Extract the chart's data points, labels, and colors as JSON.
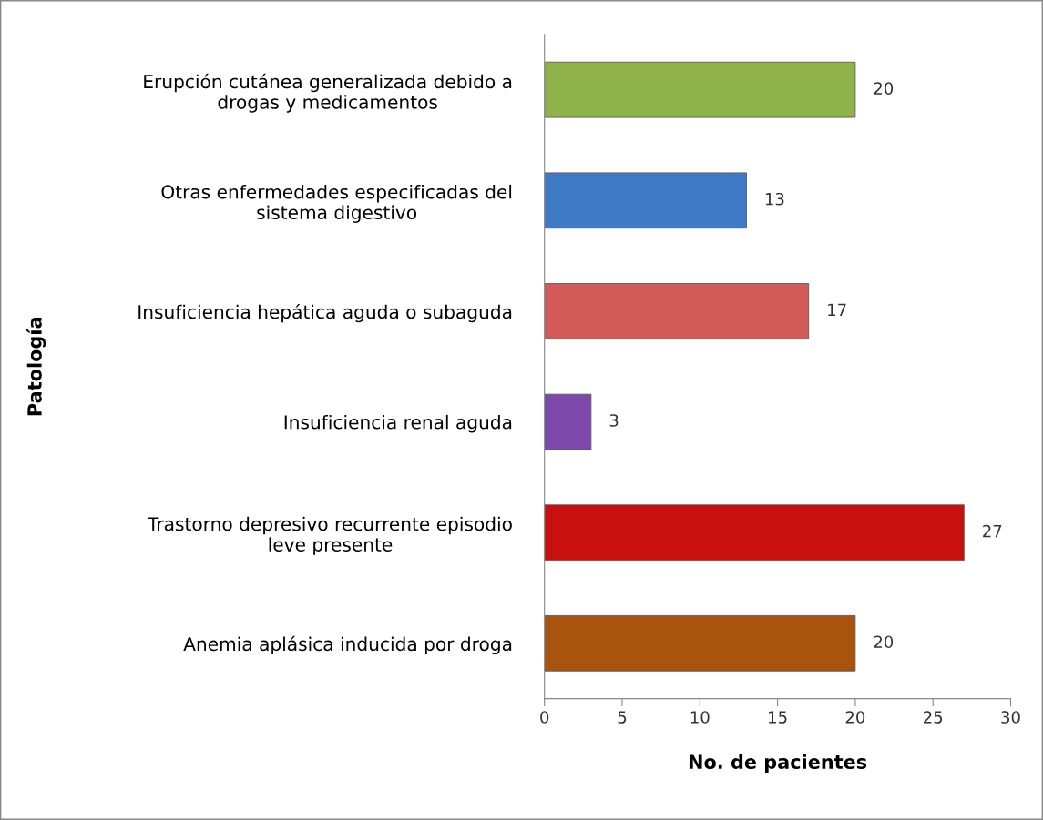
{
  "chart_data": {
    "type": "bar",
    "orientation": "horizontal",
    "categories": [
      "Erupción cutánea generalizada debido a\ndrogas y medicamentos",
      "Otras enfermedades especificadas del\nsistema digestivo",
      "Insuficiencia hepática aguda o subaguda",
      "Insuficiencia renal aguda",
      "Trastorno depresivo recurrente episodio\nleve presente",
      "Anemia aplásica inducida por droga"
    ],
    "values": [
      20,
      13,
      17,
      3,
      27,
      20
    ],
    "colors": [
      "#8fb34a",
      "#3f7ac6",
      "#d25a58",
      "#7d49aa",
      "#c8100f",
      "#a8540f"
    ],
    "xlabel": "No. de pacientes",
    "ylabel": "Patología",
    "xlim": [
      0,
      30
    ],
    "xticks": [
      0,
      5,
      10,
      15,
      20,
      25,
      30
    ],
    "data_labels": true,
    "grid": false,
    "legend": false
  }
}
